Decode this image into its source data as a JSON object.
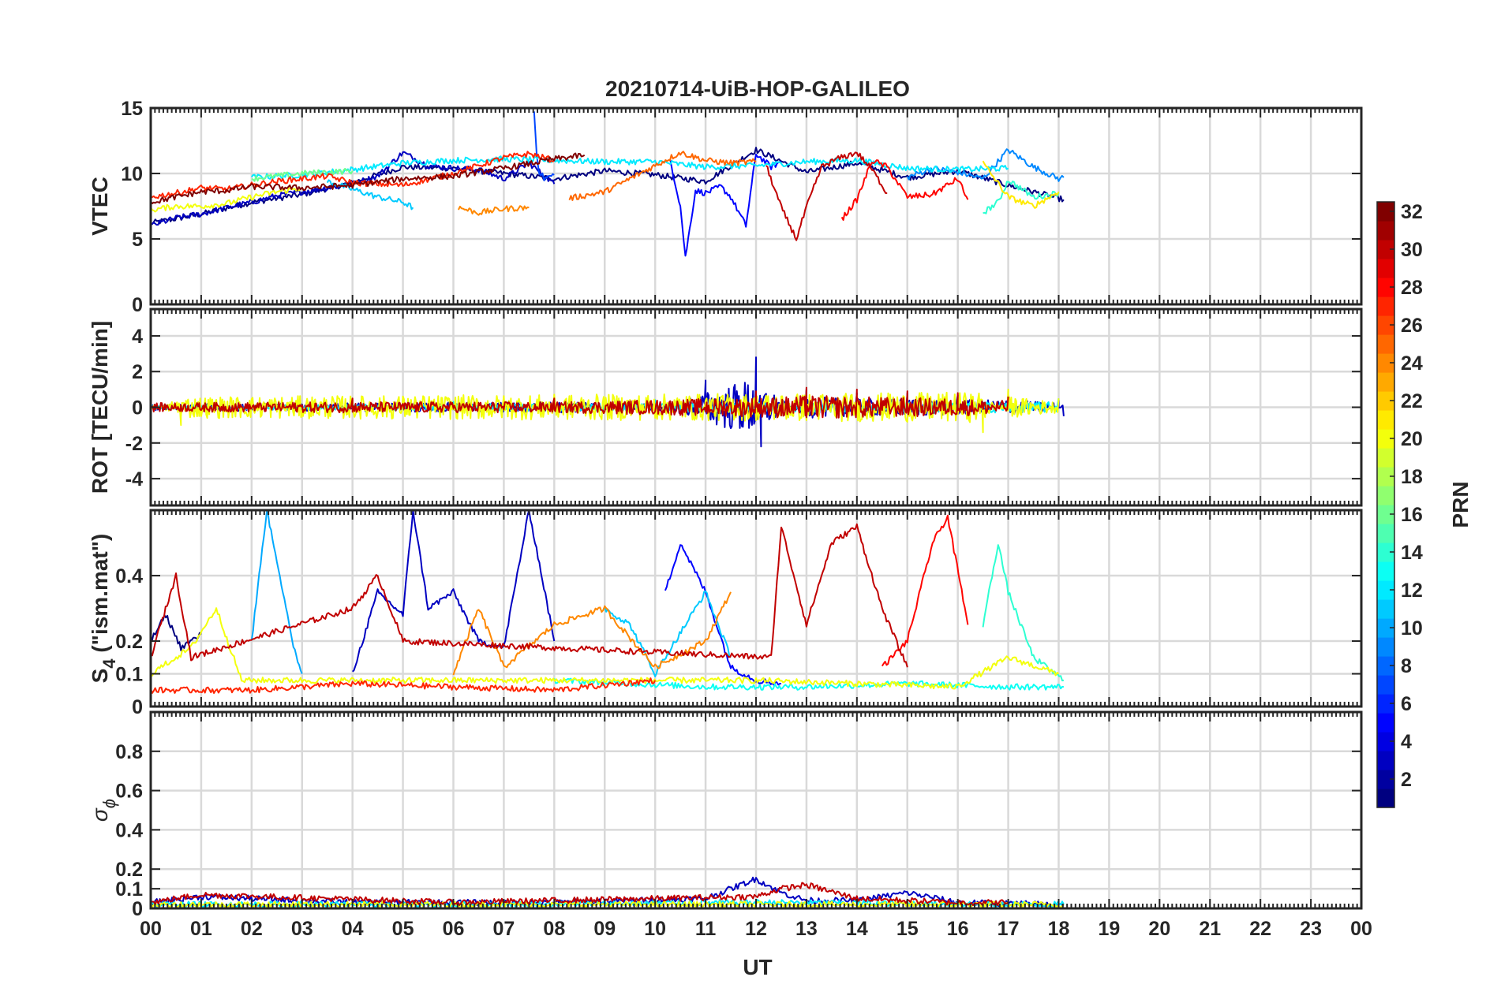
{
  "figure": {
    "title": "20210714-UiB-HOP-GALILEO",
    "xlabel": "UT",
    "colorbar_label": "PRN"
  },
  "chart_data": {
    "type": "line",
    "title": "20210714-UiB-HOP-GALILEO",
    "xlabel": "UT",
    "x_range_hours": [
      0,
      24
    ],
    "x_tick_labels": [
      "00",
      "01",
      "02",
      "03",
      "04",
      "05",
      "06",
      "07",
      "08",
      "09",
      "10",
      "11",
      "12",
      "13",
      "14",
      "15",
      "16",
      "17",
      "18",
      "19",
      "20",
      "21",
      "22",
      "23",
      "00"
    ],
    "grid": true,
    "colormap": "jet",
    "colorbar": {
      "label": "PRN",
      "range": [
        1,
        32
      ],
      "ticks": [
        "2",
        "4",
        "6",
        "8",
        "10",
        "12",
        "14",
        "16",
        "18",
        "20",
        "22",
        "24",
        "26",
        "28",
        "30",
        "32"
      ],
      "tick_values": [
        2,
        4,
        6,
        8,
        10,
        12,
        14,
        16,
        18,
        20,
        22,
        24,
        26,
        28,
        30,
        32
      ],
      "placement": "right"
    },
    "panels": [
      {
        "ylabel": "VTEC",
        "ylim": [
          0,
          15
        ],
        "yticks": [
          0,
          5,
          10,
          15
        ],
        "ytick_labels": [
          "0",
          "5",
          "10",
          "15"
        ],
        "series": [
          {
            "prn": 1,
            "x": [
              0,
              1,
              2,
              3,
              4,
              5,
              6,
              7,
              8,
              9,
              10,
              11,
              12,
              13,
              14,
              15,
              16,
              17,
              18.1
            ],
            "y": [
              6.2,
              6.9,
              7.8,
              8.4,
              9.3,
              10.5,
              10.4,
              10.0,
              9.6,
              10.2,
              9.9,
              9.4,
              11.8,
              10.1,
              10.8,
              9.7,
              10.2,
              9.1,
              8.0
            ]
          },
          {
            "prn": 3,
            "x": [
              0,
              0.5,
              1,
              1.5,
              2,
              2.5,
              3,
              3.5,
              4,
              4.5,
              5,
              5.5,
              6,
              6.5,
              7,
              7.5,
              8
            ],
            "y": [
              6.0,
              6.6,
              6.9,
              7.4,
              7.8,
              8.3,
              8.6,
              8.9,
              9.2,
              9.8,
              11.6,
              10.6,
              10.4,
              10.3,
              9.6,
              10.8,
              9.2
            ]
          },
          {
            "prn": 5,
            "x": [
              10.3,
              10.5,
              10.6,
              10.8,
              11,
              11.3,
              11.5,
              11.8,
              12,
              12.3,
              12.5
            ],
            "y": [
              11.0,
              7.5,
              3.6,
              8.7,
              8.5,
              9.0,
              8.2,
              6.0,
              11.5,
              10.5,
              10.9
            ]
          },
          {
            "prn": 7,
            "x": [
              7.6,
              7.65,
              7.7,
              7.8,
              8.0
            ],
            "y": [
              14.8,
              11.5,
              10.2,
              9.6,
              9.9
            ]
          },
          {
            "prn": 9,
            "x": [
              15,
              15.5,
              16,
              16.5,
              17,
              17.5,
              18,
              18.1
            ],
            "y": [
              9.7,
              10.4,
              10.1,
              9.6,
              11.8,
              10.5,
              9.6,
              9.7
            ]
          },
          {
            "prn": 11,
            "x": [
              3.5,
              4,
              4.5,
              5,
              5.2
            ],
            "y": [
              9.4,
              8.8,
              8.2,
              7.8,
              7.4
            ]
          },
          {
            "prn": 12,
            "x": [
              2.0,
              3,
              4,
              5,
              6,
              7,
              8,
              9,
              10,
              11,
              12,
              13,
              14,
              15,
              16,
              17
            ],
            "y": [
              9.7,
              9.9,
              10.3,
              10.8,
              11.0,
              11.1,
              11.0,
              10.9,
              10.9,
              10.5,
              10.6,
              10.9,
              11.0,
              10.4,
              10.3,
              10.4
            ]
          },
          {
            "prn": 14,
            "x": [
              16.5,
              16.8,
              17,
              17.5,
              18
            ],
            "y": [
              7.0,
              7.8,
              9.5,
              8.2,
              8.5
            ]
          },
          {
            "prn": 16,
            "x": [
              2.0,
              2.5,
              3,
              3.5,
              4
            ],
            "y": [
              9.6,
              9.8,
              10.0,
              10.1,
              10.2
            ]
          },
          {
            "prn": 20,
            "x": [
              0,
              0.5,
              1,
              1.5,
              2,
              2.5,
              3
            ],
            "y": [
              7.2,
              7.5,
              7.5,
              7.7,
              8.2,
              8.6,
              8.9
            ]
          },
          {
            "prn": 21,
            "x": [
              16.5,
              17,
              17.5,
              18
            ],
            "y": [
              10.8,
              8.2,
              7.5,
              8.6
            ]
          },
          {
            "prn": 24,
            "x": [
              6.1,
              6.5,
              7.0,
              7.5
            ],
            "y": [
              7.4,
              7.0,
              7.3,
              7.4
            ]
          },
          {
            "prn": 25,
            "x": [
              8.3,
              9,
              9.5,
              10,
              10.5,
              11,
              11.5,
              12
            ],
            "y": [
              8.1,
              8.6,
              9.6,
              10.6,
              11.6,
              11.0,
              10.8,
              10.9
            ]
          },
          {
            "prn": 27,
            "x": [
              0,
              0.5,
              1,
              1.5,
              2,
              2.5,
              3,
              3.5,
              4,
              5,
              6,
              7,
              7.5,
              8
            ],
            "y": [
              8.2,
              8.5,
              8.9,
              8.8,
              9.1,
              9.4,
              9.6,
              9.8,
              9.3,
              9.1,
              10.0,
              11.2,
              11.5,
              11.0
            ]
          },
          {
            "prn": 28,
            "x": [
              13.7,
              14,
              14.3,
              14.6,
              15,
              15.5,
              16,
              16.2
            ],
            "y": [
              6.5,
              8.0,
              11.0,
              10.5,
              8.2,
              8.4,
              9.6,
              8.0
            ]
          },
          {
            "prn": 30,
            "x": [
              12.2,
              12.5,
              12.8,
              13,
              13.3,
              13.6,
              14,
              14.3,
              14.6
            ],
            "y": [
              10.6,
              7.4,
              5.0,
              7.4,
              10.5,
              11.1,
              11.6,
              10.3,
              8.5
            ]
          },
          {
            "prn": 32,
            "x": [
              0,
              0.5,
              1,
              1.5,
              2,
              3,
              4,
              5,
              6,
              7,
              8,
              8.6
            ],
            "y": [
              7.8,
              8.2,
              8.6,
              8.7,
              9.0,
              8.9,
              9.1,
              9.6,
              9.8,
              10.4,
              11.1,
              11.4
            ]
          }
        ]
      },
      {
        "ylabel": "ROT [TECU/min]",
        "ylim": [
          -5.5,
          5.5
        ],
        "yticks": [
          -4,
          -2,
          0,
          2,
          4
        ],
        "ytick_labels": [
          "-4",
          "-2",
          "0",
          "2",
          "4"
        ],
        "series": [
          {
            "prn": 3,
            "x": [
              0,
              4,
              8,
              10.3,
              11,
              12,
              12.1,
              13,
              14,
              15,
              16,
              17,
              18,
              18.1
            ],
            "y_envelope": [
              0.3,
              0.4,
              0.5,
              0.3,
              1.5,
              2.8,
              -2.2,
              1.0,
              0.8,
              0.8,
              0.7,
              0.7,
              0.4,
              -0.5
            ]
          },
          {
            "prn": 12,
            "x": [
              0,
              6,
              10,
              14,
              18
            ],
            "y_envelope": [
              0.2,
              0.3,
              0.4,
              0.5,
              0.5
            ]
          },
          {
            "prn": 20,
            "x": [
              0,
              0.6,
              16.5,
              17,
              18
            ],
            "y_envelope": [
              0.3,
              -1.0,
              -1.4,
              1.0,
              0.5
            ]
          },
          {
            "prn": 30,
            "x": [
              0,
              4,
              8,
              12,
              13,
              14,
              15,
              16,
              17
            ],
            "y_envelope": [
              0.4,
              0.5,
              0.5,
              0.9,
              1.1,
              1.0,
              0.9,
              0.8,
              0.6
            ]
          }
        ]
      },
      {
        "ylabel": "S4 (\"ism.mat\")",
        "ylabel_main": "S",
        "ylabel_sub": "4",
        "ylabel_rest": " (\"ism.mat\")",
        "ylim": [
          0,
          0.6
        ],
        "yticks": [
          0,
          0.1,
          0.2,
          0.4
        ],
        "ytick_labels": [
          "0",
          "0.1",
          "0.2",
          "0.4"
        ],
        "series": [
          {
            "prn": 1,
            "x": [
              0,
              0.3,
              0.6,
              1.0
            ],
            "y": [
              0.2,
              0.28,
              0.18,
              0.22
            ]
          },
          {
            "prn": 3,
            "x": [
              4,
              4.5,
              5,
              5.2,
              5.5,
              6,
              6.5,
              7,
              7.5,
              8
            ],
            "y": [
              0.1,
              0.35,
              0.28,
              0.6,
              0.3,
              0.35,
              0.2,
              0.18,
              0.6,
              0.2
            ]
          },
          {
            "prn": 5,
            "x": [
              10.2,
              10.5,
              11,
              11.5,
              12,
              12.5
            ],
            "y": [
              0.35,
              0.5,
              0.35,
              0.12,
              0.08,
              0.07
            ]
          },
          {
            "prn": 10,
            "x": [
              2,
              2.3,
              2.5,
              2.8,
              3
            ],
            "y": [
              0.2,
              0.6,
              0.45,
              0.2,
              0.1
            ]
          },
          {
            "prn": 11,
            "x": [
              9,
              9.5,
              10,
              11,
              11.5
            ],
            "y": [
              0.3,
              0.25,
              0.1,
              0.35,
              0.15
            ]
          },
          {
            "prn": 13,
            "x": [
              8,
              11,
              13,
              15,
              17,
              18.1
            ],
            "y": [
              0.08,
              0.06,
              0.06,
              0.07,
              0.06,
              0.06
            ]
          },
          {
            "prn": 14,
            "x": [
              16.5,
              16.8,
              17,
              17.5,
              18.1
            ],
            "y": [
              0.25,
              0.5,
              0.35,
              0.15,
              0.08
            ]
          },
          {
            "prn": 20,
            "x": [
              0,
              0.8,
              1.3,
              1.8,
              12,
              14,
              16,
              17,
              18
            ],
            "y": [
              0.1,
              0.18,
              0.3,
              0.08,
              0.08,
              0.07,
              0.06,
              0.15,
              0.1
            ]
          },
          {
            "prn": 24,
            "x": [
              6,
              6.5,
              7,
              8,
              9,
              10,
              11,
              11.5
            ],
            "y": [
              0.1,
              0.3,
              0.12,
              0.25,
              0.3,
              0.12,
              0.2,
              0.35
            ]
          },
          {
            "prn": 27,
            "x": [
              0,
              2,
              4,
              6,
              8,
              10
            ],
            "y": [
              0.05,
              0.05,
              0.07,
              0.06,
              0.05,
              0.08
            ]
          },
          {
            "prn": 28,
            "x": [
              14.5,
              15,
              15.5,
              15.8,
              16.2
            ],
            "y": [
              0.12,
              0.2,
              0.5,
              0.58,
              0.25
            ]
          },
          {
            "prn": 30,
            "x": [
              0,
              0.5,
              0.8,
              4,
              4.5,
              5,
              12.3,
              12.5,
              13,
              13.5,
              14,
              14.5,
              15
            ],
            "y": [
              0.15,
              0.4,
              0.15,
              0.3,
              0.4,
              0.2,
              0.15,
              0.55,
              0.25,
              0.5,
              0.55,
              0.3,
              0.12
            ]
          }
        ]
      },
      {
        "ylabel": "σ ϕ",
        "ylabel_main": "σ",
        "ylabel_sub": "ϕ",
        "ylim": [
          0,
          1
        ],
        "yticks": [
          0,
          0.1,
          0.2,
          0.4,
          0.6,
          0.8
        ],
        "ytick_labels": [
          "0",
          "0.1",
          "0.2",
          "0.4",
          "0.6",
          "0.8"
        ],
        "series": [
          {
            "prn": 3,
            "x": [
              0,
              1,
              4,
              8,
              11,
              12,
              12.5,
              13,
              14,
              15,
              16,
              18.1
            ],
            "y": [
              0.03,
              0.06,
              0.03,
              0.03,
              0.05,
              0.15,
              0.08,
              0.04,
              0.04,
              0.08,
              0.03,
              0.02
            ]
          },
          {
            "prn": 12,
            "x": [
              0,
              6,
              12,
              18.1
            ],
            "y": [
              0.02,
              0.02,
              0.03,
              0.02
            ]
          },
          {
            "prn": 20,
            "x": [
              0,
              6,
              12,
              18.1
            ],
            "y": [
              0.02,
              0.02,
              0.02,
              0.02
            ]
          },
          {
            "prn": 30,
            "x": [
              0,
              1,
              6,
              12,
              12.5,
              13,
              14,
              15,
              16,
              17
            ],
            "y": [
              0.03,
              0.07,
              0.03,
              0.06,
              0.1,
              0.12,
              0.05,
              0.04,
              0.03,
              0.03
            ]
          }
        ]
      }
    ]
  }
}
